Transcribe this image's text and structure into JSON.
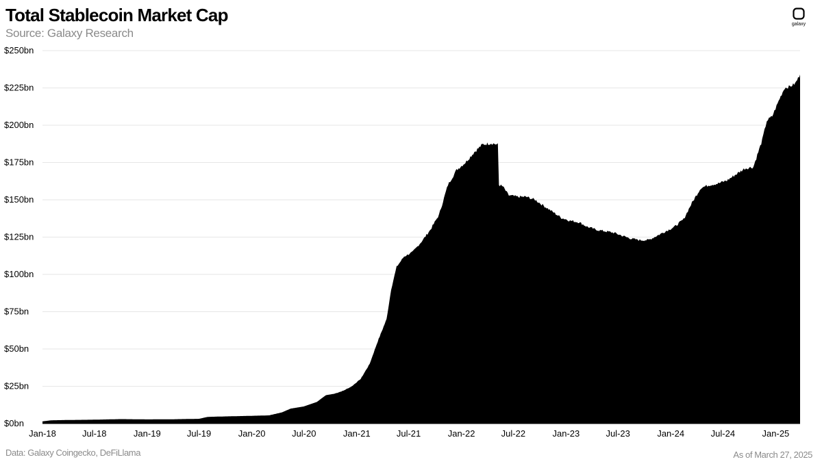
{
  "header": {
    "title": "Total Stablecoin Market Cap",
    "subtitle": "Source: Galaxy Research",
    "logo_text": "galaxy"
  },
  "footer": {
    "source_note": "Data: Galaxy Coingecko, DeFiLlama",
    "as_of": "As of March 27, 2025"
  },
  "chart_data": {
    "type": "area",
    "title": "Total Stablecoin Market Cap",
    "xlabel": "",
    "ylabel": "",
    "x_range": [
      "2018-01-01",
      "2025-03-27"
    ],
    "ylim": [
      0,
      250
    ],
    "y_unit": "bn USD",
    "y_ticks": [
      "$0bn",
      "$25bn",
      "$50bn",
      "$75bn",
      "$100bn",
      "$125bn",
      "$150bn",
      "$175bn",
      "$200bn",
      "$225bn",
      "$250bn"
    ],
    "x_ticks": [
      "Jan-18",
      "Jul-18",
      "Jan-19",
      "Jul-19",
      "Jan-20",
      "Jul-20",
      "Jan-21",
      "Jul-21",
      "Jan-22",
      "Jul-22",
      "Jan-23",
      "Jul-23",
      "Jan-24",
      "Jul-24",
      "Jan-25"
    ],
    "grid": true,
    "legend": "none",
    "fill_color": "#000000",
    "series": [
      {
        "points": [
          [
            "2018-01-01",
            1.5
          ],
          [
            "2018-02-01",
            2.2
          ],
          [
            "2018-04-01",
            2.4
          ],
          [
            "2018-07-01",
            2.6
          ],
          [
            "2018-10-01",
            3.0
          ],
          [
            "2019-01-01",
            2.8
          ],
          [
            "2019-04-01",
            2.9
          ],
          [
            "2019-07-01",
            3.2
          ],
          [
            "2019-08-01",
            4.5
          ],
          [
            "2019-10-01",
            4.8
          ],
          [
            "2020-01-01",
            5.2
          ],
          [
            "2020-03-01",
            5.5
          ],
          [
            "2020-04-15",
            7.5
          ],
          [
            "2020-05-15",
            10.0
          ],
          [
            "2020-07-01",
            11.5
          ],
          [
            "2020-08-15",
            14.5
          ],
          [
            "2020-09-15",
            19.0
          ],
          [
            "2020-10-15",
            20.0
          ],
          [
            "2020-11-15",
            22.0
          ],
          [
            "2020-12-15",
            25.0
          ],
          [
            "2021-01-15",
            30.0
          ],
          [
            "2021-02-15",
            40.0
          ],
          [
            "2021-03-15",
            55.0
          ],
          [
            "2021-04-15",
            70.0
          ],
          [
            "2021-05-01",
            90.0
          ],
          [
            "2021-05-20",
            105.0
          ],
          [
            "2021-06-15",
            112.0
          ],
          [
            "2021-07-15",
            115.0
          ],
          [
            "2021-08-15",
            122.0
          ],
          [
            "2021-09-15",
            130.0
          ],
          [
            "2021-10-15",
            140.0
          ],
          [
            "2021-11-15",
            160.0
          ],
          [
            "2021-12-15",
            170.0
          ],
          [
            "2022-01-15",
            175.0
          ],
          [
            "2022-02-15",
            182.0
          ],
          [
            "2022-03-15",
            187.0
          ],
          [
            "2022-04-15",
            188.0
          ],
          [
            "2022-05-08",
            187.0
          ],
          [
            "2022-05-12",
            160.0
          ],
          [
            "2022-05-25",
            159.0
          ],
          [
            "2022-06-15",
            153.0
          ],
          [
            "2022-07-15",
            152.0
          ],
          [
            "2022-08-15",
            152.0
          ],
          [
            "2022-09-15",
            150.0
          ],
          [
            "2022-10-15",
            146.0
          ],
          [
            "2022-11-15",
            142.0
          ],
          [
            "2022-12-15",
            138.0
          ],
          [
            "2023-01-15",
            136.0
          ],
          [
            "2023-02-15",
            135.0
          ],
          [
            "2023-03-15",
            132.0
          ],
          [
            "2023-04-15",
            130.0
          ],
          [
            "2023-05-15",
            129.0
          ],
          [
            "2023-06-15",
            128.0
          ],
          [
            "2023-07-15",
            126.0
          ],
          [
            "2023-08-15",
            124.0
          ],
          [
            "2023-09-15",
            123.0
          ],
          [
            "2023-10-15",
            123.0
          ],
          [
            "2023-11-15",
            126.0
          ],
          [
            "2023-12-15",
            129.0
          ],
          [
            "2024-01-15",
            132.0
          ],
          [
            "2024-02-15",
            137.0
          ],
          [
            "2024-03-15",
            148.0
          ],
          [
            "2024-04-15",
            158.0
          ],
          [
            "2024-05-15",
            160.0
          ],
          [
            "2024-06-15",
            161.0
          ],
          [
            "2024-07-15",
            163.0
          ],
          [
            "2024-08-15",
            167.0
          ],
          [
            "2024-09-15",
            171.0
          ],
          [
            "2024-10-15",
            172.0
          ],
          [
            "2024-11-15",
            190.0
          ],
          [
            "2024-12-01",
            203.0
          ],
          [
            "2024-12-20",
            206.0
          ],
          [
            "2025-01-15",
            218.0
          ],
          [
            "2025-02-01",
            225.0
          ],
          [
            "2025-02-20",
            226.0
          ],
          [
            "2025-03-10",
            228.0
          ],
          [
            "2025-03-27",
            234.0
          ]
        ]
      }
    ]
  }
}
